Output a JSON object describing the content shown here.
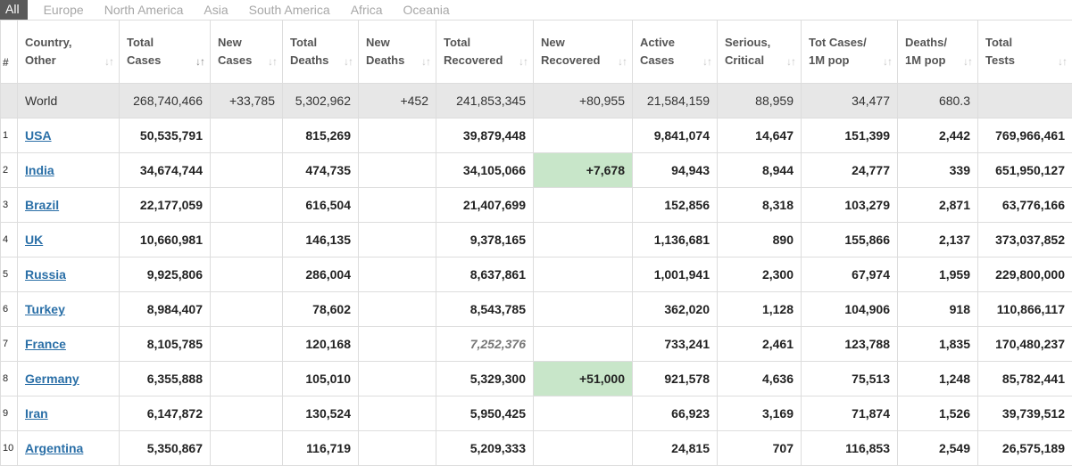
{
  "tabs": [
    "All",
    "Europe",
    "North America",
    "Asia",
    "South America",
    "Africa",
    "Oceania"
  ],
  "columns": [
    {
      "l1": "#",
      "l2": ""
    },
    {
      "l1": "Country,",
      "l2": "Other"
    },
    {
      "l1": "Total",
      "l2": "Cases"
    },
    {
      "l1": "New",
      "l2": "Cases"
    },
    {
      "l1": "Total",
      "l2": "Deaths"
    },
    {
      "l1": "New",
      "l2": "Deaths"
    },
    {
      "l1": "Total",
      "l2": "Recovered"
    },
    {
      "l1": "New",
      "l2": "Recovered"
    },
    {
      "l1": "Active",
      "l2": "Cases"
    },
    {
      "l1": "Serious,",
      "l2": "Critical"
    },
    {
      "l1": "Tot Cases/",
      "l2": "1M pop"
    },
    {
      "l1": "Deaths/",
      "l2": "1M pop"
    },
    {
      "l1": "Total",
      "l2": "Tests"
    }
  ],
  "world": [
    "",
    "World",
    "268,740,466",
    "+33,785",
    "5,302,962",
    "+452",
    "241,853,345",
    "+80,955",
    "21,584,159",
    "88,959",
    "34,477",
    "680.3",
    ""
  ],
  "rows": [
    [
      "1",
      "USA",
      "50,535,791",
      "",
      "815,269",
      "",
      "39,879,448",
      "",
      "9,841,074",
      "14,647",
      "151,399",
      "2,442",
      "769,966,461"
    ],
    [
      "2",
      "India",
      "34,674,744",
      "",
      "474,735",
      "",
      "34,105,066",
      "+7,678",
      "94,943",
      "8,944",
      "24,777",
      "339",
      "651,950,127"
    ],
    [
      "3",
      "Brazil",
      "22,177,059",
      "",
      "616,504",
      "",
      "21,407,699",
      "",
      "152,856",
      "8,318",
      "103,279",
      "2,871",
      "63,776,166"
    ],
    [
      "4",
      "UK",
      "10,660,981",
      "",
      "146,135",
      "",
      "9,378,165",
      "",
      "1,136,681",
      "890",
      "155,866",
      "2,137",
      "373,037,852"
    ],
    [
      "5",
      "Russia",
      "9,925,806",
      "",
      "286,004",
      "",
      "8,637,861",
      "",
      "1,001,941",
      "2,300",
      "67,974",
      "1,959",
      "229,800,000"
    ],
    [
      "6",
      "Turkey",
      "8,984,407",
      "",
      "78,602",
      "",
      "8,543,785",
      "",
      "362,020",
      "1,128",
      "104,906",
      "918",
      "110,866,117"
    ],
    [
      "7",
      "France",
      "8,105,785",
      "",
      "120,168",
      "",
      "7,252,376",
      "",
      "733,241",
      "2,461",
      "123,788",
      "1,835",
      "170,480,237"
    ],
    [
      "8",
      "Germany",
      "6,355,888",
      "",
      "105,010",
      "",
      "5,329,300",
      "+51,000",
      "921,578",
      "4,636",
      "75,513",
      "1,248",
      "85,782,441"
    ],
    [
      "9",
      "Iran",
      "6,147,872",
      "",
      "130,524",
      "",
      "5,950,425",
      "",
      "66,923",
      "3,169",
      "71,874",
      "1,526",
      "39,739,512"
    ],
    [
      "10",
      "Argentina",
      "5,350,867",
      "",
      "116,719",
      "",
      "5,209,333",
      "",
      "24,815",
      "707",
      "116,853",
      "2,549",
      "26,575,189"
    ]
  ],
  "colors": {
    "highlight_green": "#c8e6c9",
    "link": "#2a6fa7",
    "world_bg": "#e7e7e7",
    "tab_active_bg": "#5a5a5a"
  }
}
